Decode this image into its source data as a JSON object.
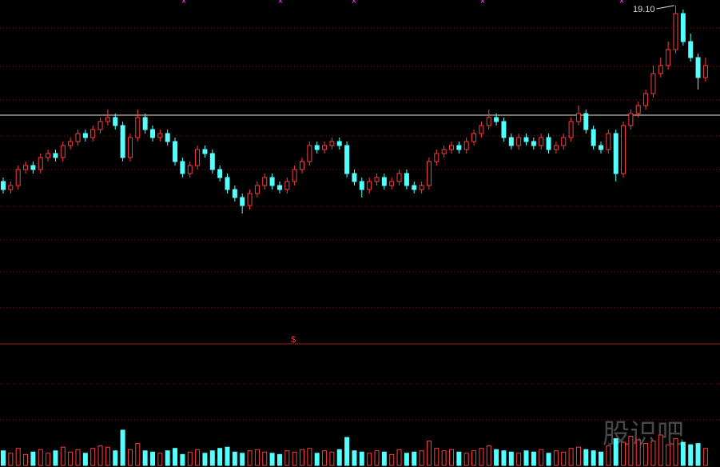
{
  "chart_data": {
    "type": "candlestick",
    "open": [
      14.7,
      14.5,
      14.6,
      15.0,
      15.1,
      15.0,
      15.3,
      15.4,
      15.3,
      15.6,
      15.7,
      15.9,
      15.8,
      16.0,
      16.2,
      16.3,
      16.1,
      15.3,
      15.8,
      16.3,
      16.0,
      15.8,
      15.9,
      15.7,
      15.2,
      14.9,
      15.1,
      15.5,
      15.4,
      15.0,
      14.8,
      14.5,
      14.3,
      14.1,
      14.4,
      14.6,
      14.8,
      14.6,
      14.5,
      14.7,
      15.0,
      15.2,
      15.6,
      15.5,
      15.6,
      15.7,
      15.6,
      14.9,
      14.7,
      14.5,
      14.7,
      14.8,
      14.6,
      14.7,
      14.9,
      14.6,
      14.5,
      14.6,
      15.2,
      15.4,
      15.5,
      15.6,
      15.5,
      15.7,
      15.9,
      16.1,
      16.3,
      16.2,
      15.8,
      15.6,
      15.8,
      15.7,
      15.6,
      15.8,
      15.5,
      15.6,
      15.8,
      16.2,
      16.4,
      16.0,
      15.6,
      15.5,
      15.9,
      14.9,
      16.1,
      16.4,
      16.6,
      16.9,
      17.4,
      17.6,
      18.0,
      18.9,
      18.2,
      17.8,
      17.3
    ],
    "high": [
      14.8,
      14.7,
      15.1,
      15.2,
      15.2,
      15.4,
      15.5,
      15.5,
      15.7,
      15.8,
      16.0,
      16.0,
      16.1,
      16.3,
      16.5,
      16.4,
      16.2,
      15.9,
      16.5,
      16.4,
      16.1,
      16.0,
      16.0,
      15.8,
      15.3,
      15.2,
      15.6,
      15.6,
      15.5,
      15.1,
      14.9,
      14.6,
      14.4,
      14.5,
      14.7,
      14.9,
      14.9,
      14.7,
      14.8,
      15.1,
      15.3,
      15.7,
      15.7,
      15.7,
      15.8,
      15.8,
      15.7,
      15.0,
      14.8,
      14.8,
      14.9,
      14.9,
      14.8,
      15.0,
      15.0,
      14.7,
      14.7,
      15.3,
      15.5,
      15.6,
      15.7,
      15.7,
      15.8,
      16.0,
      16.2,
      16.5,
      16.4,
      16.3,
      15.9,
      15.9,
      15.9,
      15.8,
      15.9,
      15.9,
      15.7,
      15.9,
      16.3,
      16.6,
      16.5,
      16.1,
      15.7,
      16.0,
      16.0,
      16.2,
      16.5,
      16.7,
      17.0,
      17.6,
      17.8,
      18.2,
      19.1,
      19.0,
      18.4,
      17.9,
      17.8
    ],
    "low": [
      14.4,
      14.4,
      14.5,
      14.9,
      14.9,
      14.9,
      15.2,
      15.2,
      15.2,
      15.5,
      15.6,
      15.7,
      15.7,
      15.9,
      16.1,
      16.0,
      15.2,
      15.2,
      15.7,
      15.9,
      15.7,
      15.7,
      15.6,
      15.1,
      14.8,
      14.8,
      15.0,
      15.3,
      14.9,
      14.7,
      14.4,
      14.2,
      13.9,
      14.0,
      14.3,
      14.5,
      14.5,
      14.4,
      14.4,
      14.6,
      14.9,
      15.1,
      15.4,
      15.4,
      15.5,
      15.5,
      14.8,
      14.6,
      14.3,
      14.4,
      14.6,
      14.5,
      14.5,
      14.6,
      14.5,
      14.4,
      14.4,
      14.5,
      15.1,
      15.3,
      15.4,
      15.4,
      15.4,
      15.6,
      15.8,
      16.0,
      16.1,
      15.7,
      15.5,
      15.5,
      15.6,
      15.5,
      15.5,
      15.4,
      15.4,
      15.5,
      15.7,
      16.1,
      15.9,
      15.5,
      15.4,
      15.4,
      14.7,
      14.8,
      16.0,
      16.3,
      16.5,
      16.8,
      17.3,
      17.5,
      17.9,
      18.1,
      17.7,
      17.0,
      17.2
    ],
    "close": [
      14.5,
      14.6,
      15.0,
      15.1,
      15.0,
      15.3,
      15.4,
      15.3,
      15.6,
      15.7,
      15.9,
      15.8,
      16.0,
      16.2,
      16.3,
      16.1,
      15.3,
      15.8,
      16.3,
      16.0,
      15.8,
      15.9,
      15.7,
      15.2,
      14.9,
      15.1,
      15.5,
      15.4,
      15.0,
      14.8,
      14.5,
      14.3,
      14.1,
      14.4,
      14.6,
      14.8,
      14.6,
      14.5,
      14.7,
      15.0,
      15.2,
      15.6,
      15.5,
      15.6,
      15.7,
      15.6,
      14.9,
      14.7,
      14.5,
      14.7,
      14.8,
      14.6,
      14.7,
      14.9,
      14.6,
      14.5,
      14.6,
      15.2,
      15.4,
      15.5,
      15.6,
      15.5,
      15.7,
      15.9,
      16.1,
      16.3,
      16.2,
      15.8,
      15.6,
      15.8,
      15.7,
      15.6,
      15.8,
      15.5,
      15.6,
      15.8,
      16.2,
      16.4,
      16.0,
      15.6,
      15.5,
      15.9,
      14.9,
      16.1,
      16.4,
      16.6,
      16.9,
      17.4,
      17.6,
      18.0,
      18.9,
      18.2,
      17.8,
      17.3,
      17.6
    ],
    "volume": [
      12,
      10,
      14,
      9,
      11,
      13,
      10,
      12,
      15,
      11,
      13,
      10,
      14,
      16,
      15,
      12,
      29,
      13,
      18,
      12,
      11,
      10,
      12,
      14,
      9,
      11,
      13,
      10,
      12,
      14,
      15,
      11,
      10,
      12,
      13,
      11,
      10,
      9,
      12,
      11,
      13,
      14,
      10,
      12,
      11,
      13,
      23,
      12,
      11,
      10,
      12,
      11,
      9,
      13,
      10,
      11,
      12,
      20,
      14,
      12,
      13,
      11,
      10,
      12,
      14,
      16,
      13,
      12,
      11,
      10,
      12,
      11,
      13,
      10,
      12,
      11,
      14,
      15,
      13,
      12,
      11,
      16,
      22,
      19,
      24,
      21,
      18,
      20,
      25,
      17,
      22,
      19,
      17,
      18,
      14
    ],
    "up_color": "#ff3c3c",
    "down_color": "#54ffff",
    "ylim": [
      10.64,
      19.24
    ],
    "volume_ylim": [
      0,
      100
    ],
    "hline": 16.36,
    "annotations": [
      {
        "text": "19.10",
        "value": 19.1
      }
    ],
    "volume_label": "$",
    "watermark": "股识吧"
  }
}
